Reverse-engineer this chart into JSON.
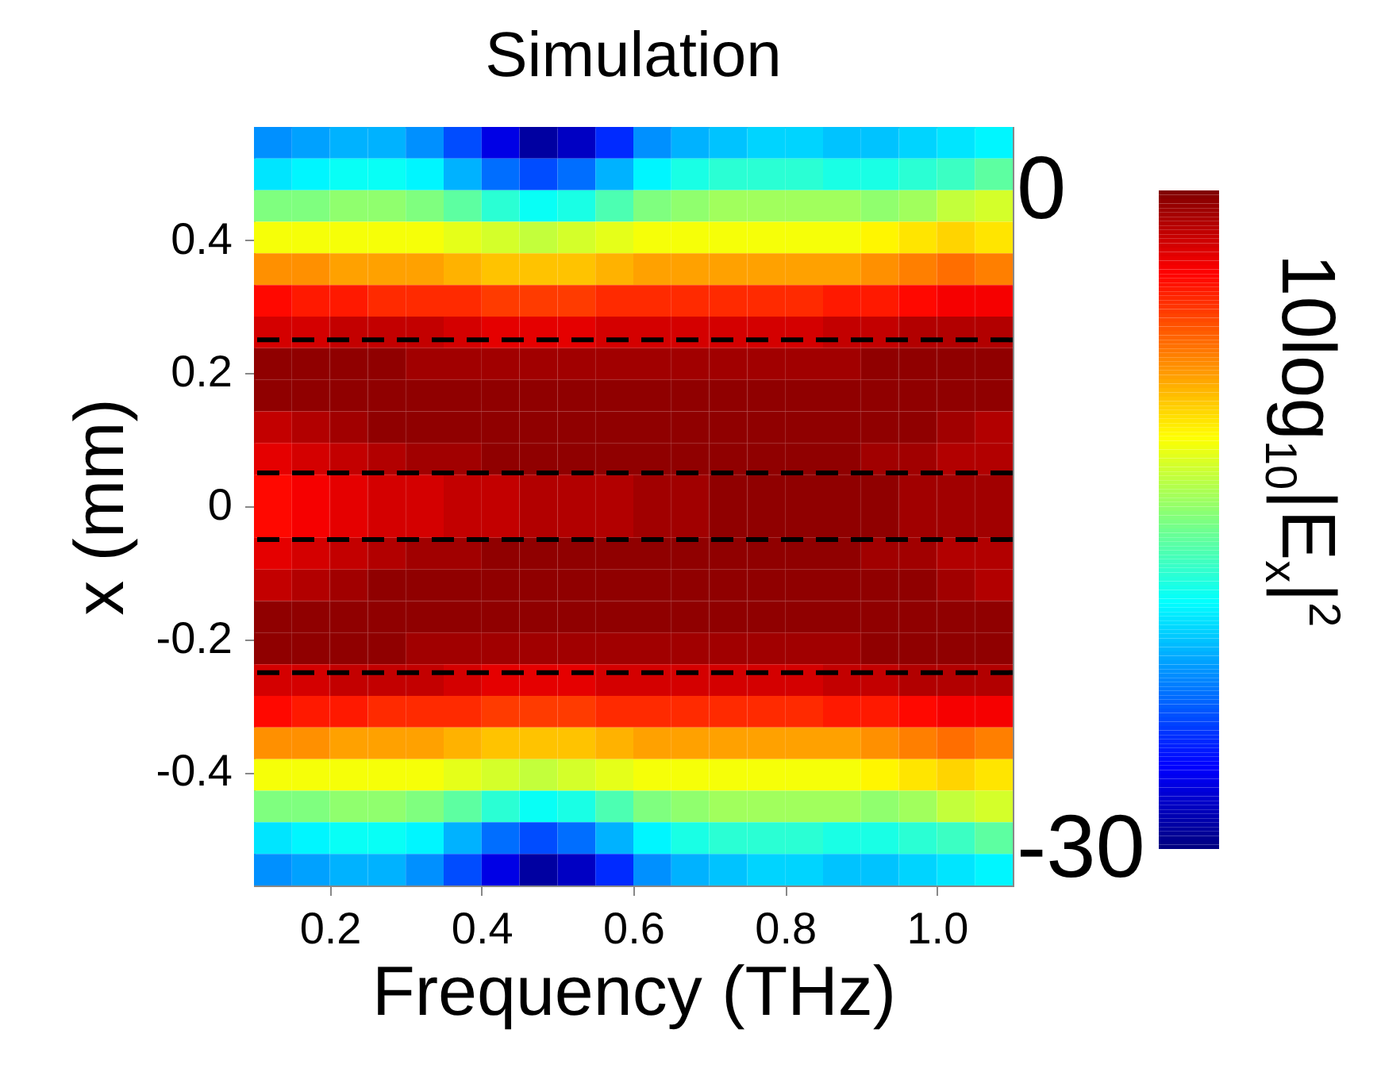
{
  "chart_data": {
    "type": "heatmap",
    "title": "Simulation",
    "xlabel": "Frequency (THz)",
    "ylabel": "x (mm)",
    "clabel": "10log$_{10}$|E$_{x}$|$^{2}$",
    "x": [
      0.125,
      0.175,
      0.225,
      0.275,
      0.325,
      0.375,
      0.425,
      0.475,
      0.525,
      0.575,
      0.625,
      0.675,
      0.725,
      0.775,
      0.825,
      0.875,
      0.925,
      0.975,
      1.025,
      1.075
    ],
    "y": [
      0.54625,
      0.49875,
      0.45125,
      0.40375,
      0.35625,
      0.30875,
      0.26125,
      0.21375,
      0.16625,
      0.11875,
      0.07125,
      0.02375,
      -0.02375,
      -0.07125,
      -0.11875,
      -0.16625,
      -0.21375,
      -0.26125,
      -0.30875,
      -0.35625,
      -0.40375,
      -0.45125,
      -0.49875,
      -0.54625
    ],
    "xlim": [
      0.1,
      1.1
    ],
    "ylim": [
      -0.57,
      0.57
    ],
    "xticks": [
      0.2,
      0.4,
      0.6,
      0.8,
      {
        "value": 1,
        "label": "1.0"
      }
    ],
    "yticks": [
      -0.4,
      -0.2,
      0,
      0.2,
      0.4
    ],
    "clim": [
      -30,
      0
    ],
    "cticks": [
      -30,
      0
    ],
    "ref_lines": [
      {
        "axis": "y",
        "value": 0.25,
        "color": "#000000",
        "line_style": "dashed"
      },
      {
        "axis": "y",
        "value": 0.05,
        "color": "#000000",
        "line_style": "dashed"
      },
      {
        "axis": "y",
        "value": -0.05,
        "color": "#000000",
        "line_style": "dashed"
      },
      {
        "axis": "y",
        "value": -0.25,
        "color": "#000000",
        "line_style": "dashed"
      }
    ],
    "cells": [
      [
        -22,
        -21.5,
        -21,
        -21,
        -22,
        -24,
        -27,
        -29,
        -28,
        -25,
        -22,
        -21,
        -20.5,
        -20,
        -20,
        -20.5,
        -20.5,
        -20,
        -19.5,
        -19
      ],
      [
        -19.5,
        -19,
        -18.5,
        -18.5,
        -19,
        -21,
        -23,
        -24,
        -23,
        -21,
        -19,
        -18,
        -17.5,
        -17.5,
        -17.5,
        -18,
        -18,
        -17.5,
        -17,
        -16
      ],
      [
        -15,
        -15,
        -14.5,
        -14.5,
        -15,
        -16,
        -17.5,
        -18.5,
        -18,
        -16.5,
        -15,
        -14.5,
        -14,
        -14,
        -14,
        -14,
        -14.5,
        -14,
        -13,
        -12.5
      ],
      [
        -11.5,
        -11.5,
        -11.5,
        -11.5,
        -11.5,
        -12,
        -12.5,
        -13,
        -12.5,
        -12,
        -11.5,
        -11.5,
        -11.5,
        -11.5,
        -11.5,
        -11.5,
        -11,
        -10.5,
        -10,
        -10.5
      ],
      [
        -8,
        -8,
        -8.5,
        -8.5,
        -8.5,
        -9,
        -9.5,
        -9.5,
        -9.5,
        -9,
        -8.5,
        -8.5,
        -8.5,
        -8.5,
        -8.5,
        -8.5,
        -8,
        -7.5,
        -7,
        -7.5
      ],
      [
        -4,
        -4.5,
        -4.5,
        -5,
        -5,
        -5,
        -5.5,
        -5.5,
        -5.5,
        -5,
        -5,
        -5,
        -5,
        -5,
        -5,
        -4.5,
        -4.5,
        -4,
        -3.5,
        -3.5
      ],
      [
        -2.5,
        -2.5,
        -2,
        -2,
        -2,
        -2.5,
        -3,
        -3,
        -3,
        -2.5,
        -2.5,
        -2.5,
        -2.5,
        -2.5,
        -2.5,
        -2,
        -2,
        -1.5,
        -1.5,
        -1.5
      ],
      [
        -0.5,
        -0.5,
        -0.5,
        -0.5,
        -1,
        -1,
        -1,
        -1,
        -1,
        -1,
        -1,
        -1,
        -1,
        -1,
        -1,
        -1,
        -0.5,
        -0.5,
        -0.5,
        -0.5
      ],
      [
        -0.5,
        -0.5,
        -0.5,
        -0.5,
        -0.5,
        -0.5,
        -0.5,
        -0.5,
        -0.5,
        -0.5,
        -0.5,
        -0.5,
        -0.5,
        -0.5,
        -0.5,
        -0.5,
        -0.5,
        -0.5,
        -0.5,
        -0.5
      ],
      [
        -2,
        -1.5,
        -1,
        -0.5,
        -0.5,
        -0.5,
        -0.5,
        -0.5,
        -0.5,
        -0.5,
        -0.5,
        -0.5,
        -0.5,
        -0.5,
        -0.5,
        -0.5,
        -0.5,
        -0.5,
        -1,
        -1.5
      ],
      [
        -3,
        -2.5,
        -2,
        -1.5,
        -1,
        -1,
        -0.5,
        -0.5,
        -0.5,
        -0.5,
        -0.5,
        -0.5,
        -0.5,
        -0.5,
        -0.5,
        -0.5,
        -1,
        -1,
        -1.5,
        -1.5
      ],
      [
        -4,
        -3.5,
        -3,
        -2.5,
        -2.5,
        -2,
        -2,
        -1.5,
        -1.5,
        -1.5,
        -1,
        -1,
        -0.5,
        -0.5,
        -0.5,
        -0.5,
        -0.5,
        -1,
        -1,
        -1
      ],
      [
        -4,
        -3.5,
        -3,
        -2.5,
        -2.5,
        -2,
        -2,
        -1.5,
        -1.5,
        -1.5,
        -1,
        -1,
        -0.5,
        -0.5,
        -0.5,
        -0.5,
        -0.5,
        -1,
        -1,
        -1
      ],
      [
        -3,
        -2.5,
        -2,
        -1.5,
        -1,
        -1,
        -0.5,
        -0.5,
        -0.5,
        -0.5,
        -0.5,
        -0.5,
        -0.5,
        -0.5,
        -0.5,
        -0.5,
        -1,
        -1,
        -1.5,
        -1.5
      ],
      [
        -2,
        -1.5,
        -1,
        -0.5,
        -0.5,
        -0.5,
        -0.5,
        -0.5,
        -0.5,
        -0.5,
        -0.5,
        -0.5,
        -0.5,
        -0.5,
        -0.5,
        -0.5,
        -0.5,
        -0.5,
        -1,
        -1.5
      ],
      [
        -0.5,
        -0.5,
        -0.5,
        -0.5,
        -0.5,
        -0.5,
        -0.5,
        -0.5,
        -0.5,
        -0.5,
        -0.5,
        -0.5,
        -0.5,
        -0.5,
        -0.5,
        -0.5,
        -0.5,
        -0.5,
        -0.5,
        -0.5
      ],
      [
        -0.5,
        -0.5,
        -0.5,
        -0.5,
        -1,
        -1,
        -1,
        -1,
        -1,
        -1,
        -1,
        -1,
        -1,
        -1,
        -1,
        -1,
        -0.5,
        -0.5,
        -0.5,
        -0.5
      ],
      [
        -2.5,
        -2.5,
        -2,
        -2,
        -2,
        -2.5,
        -3,
        -3,
        -3,
        -2.5,
        -2.5,
        -2.5,
        -2.5,
        -2.5,
        -2.5,
        -2,
        -2,
        -1.5,
        -1.5,
        -1.5
      ],
      [
        -4,
        -4.5,
        -4.5,
        -5,
        -5,
        -5,
        -5.5,
        -5.5,
        -5.5,
        -5,
        -5,
        -5,
        -5,
        -5,
        -5,
        -4.5,
        -4.5,
        -4,
        -3.5,
        -3.5
      ],
      [
        -8,
        -8,
        -8.5,
        -8.5,
        -8.5,
        -9,
        -9.5,
        -9.5,
        -9.5,
        -9,
        -8.5,
        -8.5,
        -8.5,
        -8.5,
        -8.5,
        -8.5,
        -8,
        -7.5,
        -7,
        -7.5
      ],
      [
        -11.5,
        -11.5,
        -11.5,
        -11.5,
        -11.5,
        -12,
        -12.5,
        -13,
        -12.5,
        -12,
        -11.5,
        -11.5,
        -11.5,
        -11.5,
        -11.5,
        -11.5,
        -11,
        -10.5,
        -10,
        -10.5
      ],
      [
        -15,
        -15,
        -14.5,
        -14.5,
        -15,
        -16,
        -17.5,
        -18.5,
        -18,
        -16.5,
        -15,
        -14.5,
        -14,
        -14,
        -14,
        -14,
        -14.5,
        -14,
        -13,
        -12.5
      ],
      [
        -19.5,
        -19,
        -18.5,
        -18.5,
        -19,
        -21,
        -23,
        -24,
        -23,
        -21,
        -19,
        -18,
        -17.5,
        -17.5,
        -17.5,
        -18,
        -18,
        -17.5,
        -17,
        -16
      ],
      [
        -22,
        -21.5,
        -21,
        -21,
        -22,
        -24,
        -27,
        -29,
        -28,
        -25,
        -22,
        -21,
        -20.5,
        -20,
        -20,
        -20.5,
        -20.5,
        -20,
        -19.5,
        -19
      ]
    ]
  }
}
